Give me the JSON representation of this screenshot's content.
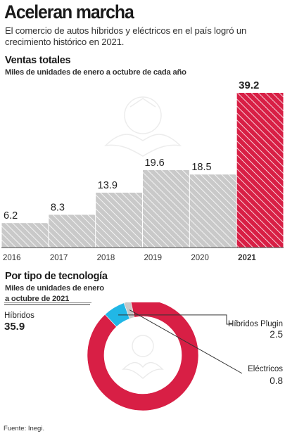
{
  "header": {
    "title": "Aceleran marcha",
    "subtitle": "El comercio de autos híbridos y eléctricos en el país logró un crecimiento histórico en 2021."
  },
  "sections": {
    "totals_title": "Ventas totales",
    "totals_sub": "Miles de unidades de enero a octubre de cada año",
    "tech_title": "Por tipo de tecnología",
    "tech_sub_1": "Miles de unidades de enero",
    "tech_sub_2": "a octubre de 2021"
  },
  "source": "Fuente: Inegi.",
  "colors": {
    "gray": "#c9c9c9",
    "red": "#d81f45",
    "blue": "#21b7e6",
    "text": "#222222"
  },
  "chart_data": [
    {
      "type": "bar",
      "title": "Ventas totales",
      "categories": [
        "2016",
        "2017",
        "2018",
        "2019",
        "2020",
        "2021"
      ],
      "values": [
        6.2,
        8.3,
        13.9,
        19.6,
        18.5,
        39.2
      ],
      "value_labels": [
        "6.2",
        "8.3",
        "13.9",
        "19.6",
        "18.5",
        "39.2"
      ],
      "highlight_index": 5,
      "ylim": [
        0,
        39.2
      ],
      "grid": false
    },
    {
      "type": "pie",
      "title": "Por tipo de tecnología",
      "donut": true,
      "slices": [
        {
          "name": "Híbridos",
          "value": 35.9,
          "label": "35.9",
          "color": "#d81f45"
        },
        {
          "name": "Híbridos Plugin",
          "value": 2.5,
          "label": "2.5",
          "color": "#21b7e6"
        },
        {
          "name": "Eléctricos",
          "value": 0.8,
          "label": "0.8",
          "color": "#c9c9c9"
        }
      ]
    }
  ]
}
